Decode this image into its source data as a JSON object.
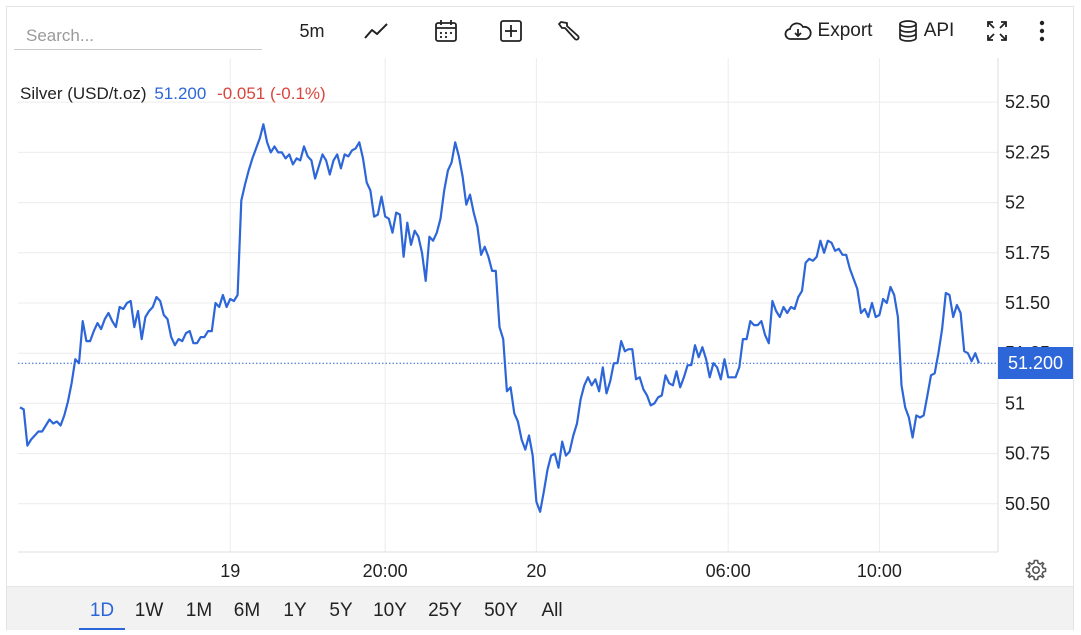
{
  "toolbar": {
    "search_placeholder": "Search...",
    "interval_label": "5m",
    "export_label": "Export",
    "api_label": "API",
    "icons": [
      "line-chart-icon",
      "calendar-icon",
      "add-compare-icon",
      "wrench-icon",
      "cloud-download-icon",
      "database-icon",
      "fullscreen-icon",
      "more-vertical-icon"
    ]
  },
  "legend": {
    "name": "Silver (USD/t.oz)",
    "price": "51.200",
    "change": "-0.051 (-0.1%)"
  },
  "price_tag": "51.200",
  "colors": {
    "line": "#2d66d8",
    "negative": "#d9453b",
    "grid": "#ececec"
  },
  "ranges": [
    "1D",
    "1W",
    "1M",
    "6M",
    "1Y",
    "5Y",
    "10Y",
    "25Y",
    "50Y",
    "All"
  ],
  "active_range": "1D",
  "chart_data": {
    "type": "line",
    "title": "",
    "xlabel": "",
    "ylabel": "",
    "ylim": [
      50.26,
      52.72
    ],
    "y_ticks": [
      "52.50",
      "52.25",
      "52",
      "51.75",
      "51.50",
      "51.25",
      "51",
      "50.75",
      "50.50"
    ],
    "y_tick_values": [
      52.5,
      52.25,
      52.0,
      51.75,
      51.5,
      51.25,
      51.0,
      50.75,
      50.5
    ],
    "x_ticks": [
      "19",
      "20:00",
      "20",
      "06:00",
      "10:00"
    ],
    "x_tick_index": [
      57,
      99,
      140,
      192,
      233
    ],
    "last_value": 51.2,
    "grid": true,
    "series": [
      {
        "values": [
          50.98,
          50.97,
          50.79,
          50.82,
          50.84,
          50.86,
          50.86,
          50.89,
          50.92,
          50.9,
          50.91,
          50.89,
          50.94,
          51.01,
          51.1,
          51.22,
          51.2,
          51.41,
          51.31,
          51.31,
          51.36,
          51.4,
          51.37,
          51.42,
          51.45,
          51.41,
          51.38,
          51.48,
          51.47,
          51.5,
          51.51,
          51.38,
          51.46,
          51.32,
          51.43,
          51.46,
          51.48,
          51.53,
          51.51,
          51.44,
          51.42,
          51.33,
          51.29,
          51.32,
          51.31,
          51.35,
          51.36,
          51.3,
          51.3,
          51.33,
          51.33,
          51.36,
          51.36,
          51.5,
          51.48,
          51.54,
          51.48,
          51.52,
          51.51,
          51.54,
          52.01,
          52.09,
          52.16,
          52.22,
          52.27,
          52.32,
          52.39,
          52.3,
          52.25,
          52.28,
          52.25,
          52.25,
          52.22,
          52.24,
          52.19,
          52.22,
          52.21,
          52.28,
          52.23,
          52.21,
          52.12,
          52.18,
          52.24,
          52.21,
          52.14,
          52.21,
          52.24,
          52.17,
          52.24,
          52.23,
          52.26,
          52.27,
          52.3,
          52.22,
          52.1,
          52.06,
          51.93,
          51.94,
          52.03,
          51.93,
          51.92,
          51.85,
          51.95,
          51.94,
          51.73,
          51.9,
          51.79,
          51.86,
          51.83,
          51.75,
          51.61,
          51.83,
          51.81,
          51.85,
          51.92,
          52.06,
          52.16,
          52.2,
          52.3,
          52.23,
          52.13,
          51.99,
          52.04,
          51.95,
          51.88,
          51.74,
          51.78,
          51.73,
          51.66,
          51.66,
          51.38,
          51.32,
          51.06,
          51.08,
          50.95,
          50.91,
          50.82,
          50.77,
          50.84,
          50.74,
          50.51,
          50.46,
          50.56,
          50.67,
          50.74,
          50.75,
          50.68,
          50.81,
          50.74,
          50.76,
          50.84,
          50.9,
          51.02,
          51.09,
          51.13,
          51.09,
          51.12,
          51.06,
          51.18,
          51.05,
          51.11,
          51.2,
          51.2,
          51.31,
          51.26,
          51.27,
          51.27,
          51.12,
          51.13,
          51.07,
          51.04,
          50.99,
          51.0,
          51.03,
          51.04,
          51.14,
          51.1,
          51.09,
          51.16,
          51.08,
          51.13,
          51.19,
          51.19,
          51.29,
          51.23,
          51.28,
          51.22,
          51.13,
          51.2,
          51.18,
          51.12,
          51.22,
          51.13,
          51.13,
          51.13,
          51.18,
          51.32,
          51.32,
          51.41,
          51.39,
          51.39,
          51.41,
          51.34,
          51.3,
          51.51,
          51.46,
          51.43,
          51.48,
          51.45,
          51.48,
          51.47,
          51.53,
          51.56,
          51.7,
          51.72,
          51.71,
          51.73,
          51.81,
          51.75,
          51.81,
          51.8,
          51.76,
          51.77,
          51.74,
          51.74,
          51.67,
          51.62,
          51.57,
          51.45,
          51.47,
          51.43,
          51.5,
          51.43,
          51.44,
          51.52,
          51.5,
          51.58,
          51.54,
          51.43,
          51.09,
          50.98,
          50.93,
          50.83,
          50.94,
          50.93,
          50.94,
          51.04,
          51.14,
          51.15,
          51.25,
          51.37,
          51.55,
          51.54,
          51.43,
          51.49,
          51.45,
          51.26,
          51.25,
          51.21,
          51.25,
          51.2
        ]
      }
    ]
  }
}
